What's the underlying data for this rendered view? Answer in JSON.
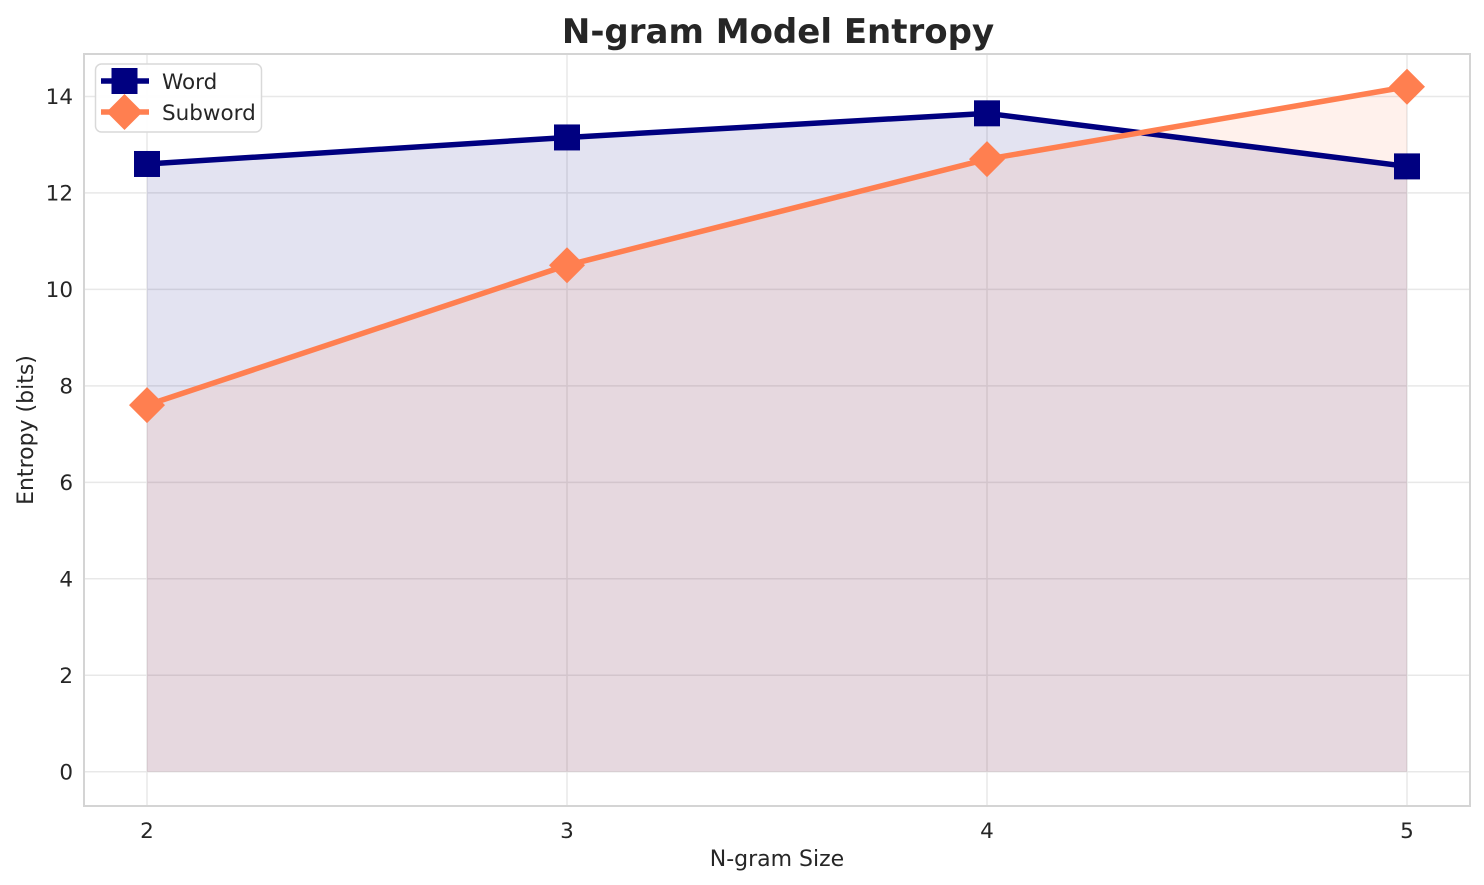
{
  "chart_data": {
    "type": "line",
    "title": "N-gram Model Entropy",
    "xlabel": "N-gram Size",
    "ylabel": "Entropy (bits)",
    "x": [
      2,
      3,
      4,
      5
    ],
    "x_tick_labels": [
      "2",
      "3",
      "4",
      "5"
    ],
    "y_tick_values": [
      0,
      2,
      4,
      6,
      8,
      10,
      12,
      14
    ],
    "y_tick_labels": [
      "0",
      "2",
      "4",
      "6",
      "8",
      "10",
      "12",
      "14"
    ],
    "xlim": [
      1.85,
      5.15
    ],
    "ylim": [
      -0.71,
      14.88
    ],
    "grid": true,
    "area_fill": true,
    "legend": {
      "position": "upper left",
      "entries": [
        "Word",
        "Subword"
      ]
    },
    "styles": {
      "grid_color": "#e8e8e8",
      "spine_color": "#d4d4d4",
      "text_color": "#262626",
      "fill_opacity": 0.11,
      "line_width": 5.5
    },
    "series": [
      {
        "name": "Word",
        "color": "#000080",
        "marker": "square",
        "values": [
          12.6,
          13.15,
          13.65,
          12.55
        ]
      },
      {
        "name": "Subword",
        "color": "#FF7F50",
        "marker": "diamond",
        "values": [
          7.6,
          10.5,
          12.7,
          14.2
        ]
      }
    ]
  }
}
